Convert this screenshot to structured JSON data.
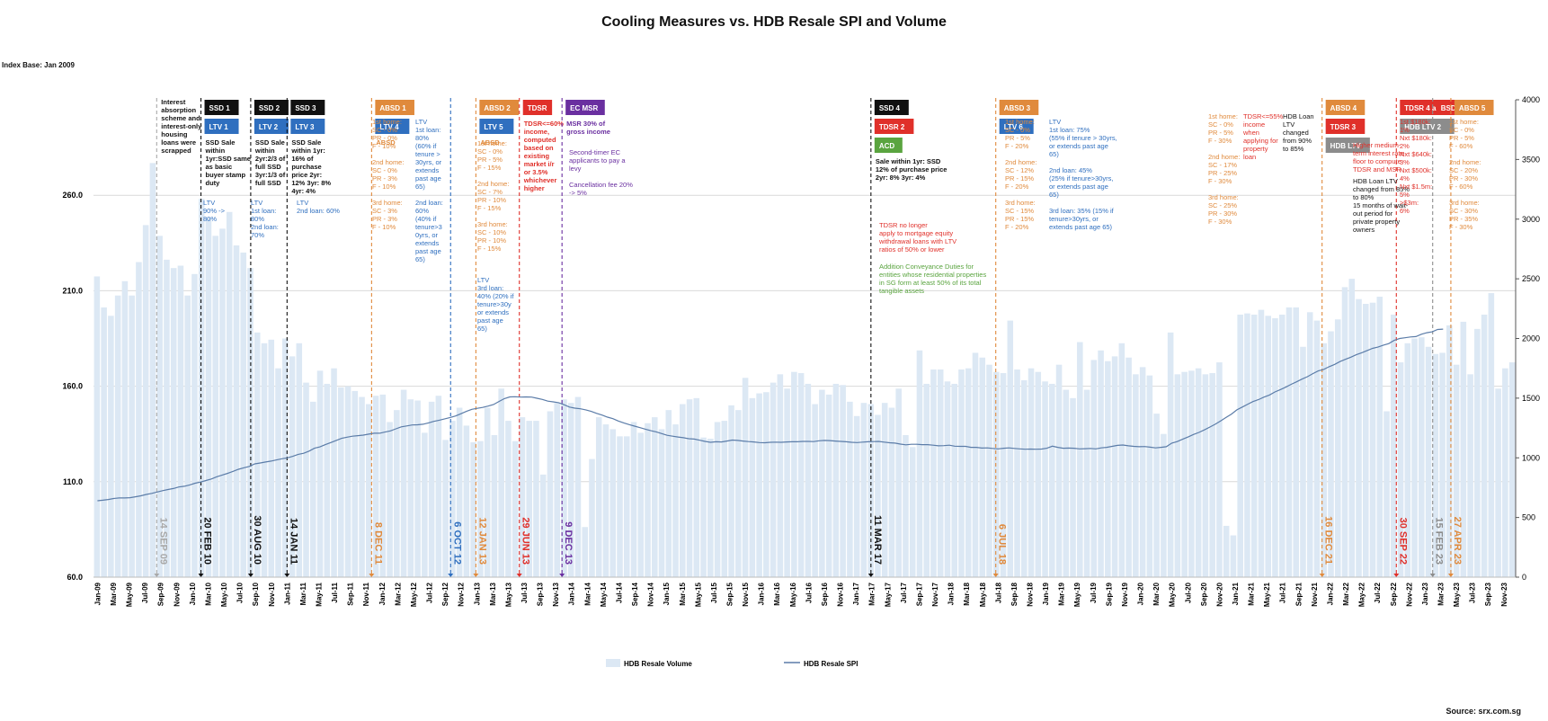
{
  "title": "Cooling Measures vs. HDB Resale SPI and Volume",
  "index_base": "Index Base: Jan 2009",
  "source": "Source: srx.com.sg",
  "colors": {
    "volume_bar": "#dce8f4",
    "spi_line": "#5b7ca8",
    "black": "#111111",
    "blue": "#2f6fbf",
    "orange": "#e08a3c",
    "red": "#e0302a",
    "purple": "#6a2fa0",
    "green": "#5aa43f",
    "gray": "#8c8c8c",
    "grey_event": "#a8a8a8"
  },
  "chart_data": {
    "type": "bar",
    "x_tick_labels": [
      "Jan-09",
      "Mar-09",
      "May-09",
      "Jul-09",
      "Sep-09",
      "Nov-09",
      "Jan-10",
      "Mar-10",
      "May-10",
      "Jul-10",
      "Sep-10",
      "Nov-10",
      "Jan-11",
      "Mar-11",
      "May-11",
      "Jul-11",
      "Sep-11",
      "Nov-11",
      "Jan-12",
      "Mar-12",
      "May-12",
      "Jul-12",
      "Sep-12",
      "Nov-12",
      "Jan-13",
      "Mar-13",
      "May-13",
      "Jul-13",
      "Sep-13",
      "Nov-13",
      "Jan-14",
      "Mar-14",
      "May-14",
      "Jul-14",
      "Sep-14",
      "Nov-14",
      "Jan-15",
      "Mar-15",
      "May-15",
      "Jul-15",
      "Sep-15",
      "Nov-15",
      "Jan-16",
      "Mar-16",
      "May-16",
      "Jul-16",
      "Sep-16",
      "Nov-16",
      "Jan-17",
      "Mar-17",
      "May-17",
      "Jul-17",
      "Sep-17",
      "Nov-17",
      "Jan-18",
      "Mar-18",
      "May-18",
      "Jul-18",
      "Sep-18",
      "Nov-18",
      "Jan-19",
      "Mar-19",
      "May-19",
      "Jul-19",
      "Sep-19",
      "Nov-19",
      "Jan-20",
      "Mar-20",
      "May-20",
      "Jul-20",
      "Sep-20",
      "Nov-20",
      "Jan-21",
      "Mar-21",
      "May-21",
      "Jul-21",
      "Sep-21",
      "Nov-21",
      "Jan-22",
      "Mar-22",
      "May-22",
      "Jul-22",
      "Sep-22",
      "Nov-22",
      "Jan-23",
      "Mar-23",
      "May-23",
      "Jul-23",
      "Sep-23",
      "Nov-23"
    ],
    "left_axis": {
      "ticks": [
        "60.0",
        "110.0",
        "160.0",
        "210.0",
        "260.0"
      ],
      "range": [
        60,
        310
      ]
    },
    "right_axis": {
      "ticks": [
        "0",
        "500",
        "1000",
        "1500",
        "2000",
        "2500",
        "3000",
        "3500",
        "4000"
      ],
      "range": [
        0,
        4000
      ]
    },
    "series": [
      {
        "name": "HDB Resale Volume",
        "type": "bar",
        "axis": "right",
        "start": "Jan-09",
        "values": [
          2520,
          2260,
          2190,
          2360,
          2480,
          2360,
          2640,
          2950,
          3470,
          2860,
          2660,
          2590,
          2610,
          2360,
          2540,
          3170,
          3010,
          2860,
          2920,
          3060,
          2780,
          2720,
          2590,
          2050,
          1960,
          1990,
          1750,
          2000,
          1850,
          1960,
          1630,
          1470,
          1730,
          1620,
          1750,
          1590,
          1600,
          1560,
          1510,
          1450,
          1520,
          1530,
          1300,
          1400,
          1570,
          1490,
          1480,
          1210,
          1470,
          1520,
          1150,
          1310,
          1420,
          1270,
          1130,
          1140,
          1420,
          1190,
          1580,
          1310,
          1140,
          1340,
          1310,
          1310,
          860,
          1390,
          1460,
          1490,
          1460,
          1510,
          420,
          990,
          1340,
          1280,
          1240,
          1180,
          1180,
          1300,
          1210,
          1290,
          1340,
          1240,
          1400,
          1280,
          1450,
          1490,
          1500,
          1170,
          1160,
          1300,
          1310,
          1440,
          1400,
          1670,
          1500,
          1540,
          1550,
          1630,
          1700,
          1580,
          1720,
          1710,
          1620,
          1450,
          1570,
          1530,
          1620,
          1610,
          1470,
          1350,
          1460,
          1450,
          1360,
          1460,
          1420,
          1580,
          1190,
          1090,
          1900,
          1620,
          1740,
          1740,
          1640,
          1620,
          1740,
          1750,
          1880,
          1840,
          1780,
          1720,
          1710,
          2150,
          1740,
          1650,
          1750,
          1720,
          1640,
          1620,
          1780,
          1570,
          1500,
          1970,
          1570,
          1820,
          1900,
          1810,
          1850,
          1960,
          1840,
          1700,
          1760,
          1690,
          1370,
          1200,
          2050,
          1700,
          1720,
          1730,
          1750,
          1700,
          1710,
          1800,
          430,
          350,
          2200,
          2210,
          2200,
          2240,
          2190,
          2170,
          2200,
          2260,
          2260,
          1930,
          2220,
          2150,
          1960,
          2060,
          2160,
          2430,
          2500,
          2330,
          2290,
          2300,
          2350,
          1390,
          2200,
          1800,
          1960,
          2000,
          2010,
          1930,
          1870,
          1880,
          2110,
          1780,
          2140,
          1700,
          2080,
          2200,
          2380,
          1580,
          1750,
          1800
        ]
      },
      {
        "name": "HDB Resale SPI",
        "type": "line",
        "axis": "left",
        "start": "Jan-09",
        "values": [
          100.0,
          100.3,
          100.7,
          101.2,
          101.5,
          101.5,
          101.6,
          102.1,
          102.6,
          103.3,
          103.9,
          104.6,
          105.3,
          105.9,
          106.4,
          107.2,
          107.6,
          108.3,
          109.2,
          109.8,
          110.6,
          111.4,
          112.6,
          113.5,
          114.4,
          115.4,
          116.5,
          117.3,
          118.0,
          119.3,
          119.8,
          120.3,
          120.8,
          121.4,
          122.0,
          122.5,
          123.3,
          124.3,
          124.9,
          126.0,
          127.5,
          128.2,
          129.4,
          130.5,
          131.6,
          132.7,
          133.3,
          133.8,
          134.1,
          134.4,
          134.9,
          135.4,
          135.4,
          136.0,
          136.6,
          137.7,
          138.7,
          139.2,
          139.7,
          139.8,
          140.1,
          140.8,
          141.6,
          142.2,
          142.9,
          143.6,
          144.4,
          145.6,
          146.8,
          147.9,
          148.4,
          148.9,
          149.6,
          150.4,
          152.0,
          153.5,
          154.4,
          154.5,
          154.3,
          154.4,
          154.3,
          153.7,
          153.1,
          152.2,
          151.8,
          151.4,
          150.3,
          149.1,
          148.5,
          148.2,
          147.6,
          146.8,
          145.8,
          144.9,
          143.8,
          143.0,
          141.8,
          140.8,
          139.9,
          139.1,
          138.3,
          137.5,
          136.7,
          136.1,
          135.2,
          134.3,
          133.8,
          133.4,
          133.0,
          132.5,
          132.3,
          131.7,
          131.1,
          130.6,
          130.9,
          130.8,
          131.3,
          131.8,
          131.6,
          131.3,
          131.0,
          130.8,
          130.5,
          130.4,
          130.6,
          130.7,
          130.6,
          130.8,
          130.9,
          130.9,
          131.1,
          131.1,
          131.0,
          131.4,
          131.6,
          131.5,
          131.3,
          131.1,
          130.9,
          130.6,
          130.5,
          130.7,
          130.9,
          131.0,
          131.1,
          130.7,
          130.4,
          130.2,
          129.7,
          129.3,
          129.6,
          129.6,
          129.4,
          129.4,
          129.1,
          128.8,
          128.9,
          129.1,
          128.6,
          128.5,
          128.5,
          128.0,
          128.0,
          127.6,
          127.7,
          127.4,
          127.2,
          127.5,
          127.7,
          127.4,
          127.2,
          127.0,
          127.1,
          127.0,
          127.1,
          127.5,
          128.6,
          128.0,
          127.5,
          127.6,
          127.5,
          127.2,
          127.3,
          127.4,
          127.2,
          127.7,
          128.0,
          128.5,
          129.0,
          129.2,
          128.8,
          128.5,
          128.3,
          128.4,
          128.1,
          127.7,
          128.0,
          128.3,
          130.2,
          131.0,
          132.2,
          133.4,
          134.7,
          135.8,
          137.1,
          138.6,
          140.1,
          141.8,
          143.6,
          145.4,
          147.6,
          149.1,
          150.6,
          152.0,
          153.0,
          154.3,
          155.4,
          157.0,
          158.2,
          159.5,
          161.0,
          162.3,
          163.7,
          165.0,
          166.6,
          168.0,
          168.8,
          170.2,
          171.4,
          172.9,
          174.1,
          175.2,
          176.5,
          177.5,
          178.7,
          179.8,
          180.5,
          181.5,
          182.3,
          184.0,
          185.0,
          185.4,
          185.8,
          186.0,
          187.2,
          188.0,
          188.5,
          189.7,
          189.9
        ]
      }
    ]
  },
  "events": [
    {
      "date": "14 SEP 09",
      "month": 8,
      "color": "grey_event",
      "boxes": [],
      "text": "Interest absorption scheme and interest-only housing loans were scrapped"
    },
    {
      "date": "20 FEB 10",
      "month": 13.6,
      "color": "black",
      "boxes": [
        {
          "t": "SSD 1",
          "c": "black"
        },
        {
          "t": "LTV 1",
          "c": "blue"
        }
      ],
      "text": "SSD Sale within 1yr:SSD same as basic buyer stamp duty"
    },
    {
      "date": "30 AUG 10",
      "month": 19.9,
      "color": "black",
      "boxes": [
        {
          "t": "SSD 2",
          "c": "black"
        },
        {
          "t": "LTV 2",
          "c": "blue"
        }
      ],
      "text": "SSD Sale within 2yr:2/3 of full SSD 3yr:1/3 of full SSD"
    },
    {
      "date": "14 JAN 11",
      "month": 24.5,
      "color": "black",
      "boxes": [
        {
          "t": "SSD 3",
          "c": "black"
        },
        {
          "t": "LTV 3",
          "c": "blue"
        }
      ],
      "text": "SSD Sale within 1yr: 16% of purchase price 2yr: 12% 3yr: 8% 4yr: 4%"
    },
    {
      "date": "8 DEC 11",
      "month": 35.2,
      "color": "orange",
      "boxes": [
        {
          "t": "ABSD 1",
          "c": "orange"
        },
        {
          "t": "LTV 4",
          "c": "blue"
        }
      ],
      "text": "ABSD"
    },
    {
      "date": "6 OCT 12",
      "month": 45.2,
      "color": "blue",
      "boxes": [],
      "text": ""
    },
    {
      "date": "12 JAN 13",
      "month": 48.4,
      "color": "orange",
      "boxes": [
        {
          "t": "ABSD 2",
          "c": "orange"
        },
        {
          "t": "LTV 5",
          "c": "blue"
        }
      ],
      "text": "ABSD"
    },
    {
      "date": "29 JUN 13",
      "month": 53.9,
      "color": "red",
      "boxes": [
        {
          "t": "TDSR",
          "c": "red"
        }
      ],
      "text": "TDSR<=60% income, computed based on existing market i/r or 3.5% whichever higher"
    },
    {
      "date": "9 DEC 13",
      "month": 59.3,
      "color": "purple",
      "boxes": [
        {
          "t": "EC MSR",
          "c": "purple"
        }
      ],
      "text": "MSR 30% of gross income"
    },
    {
      "date": "11 MAR 17",
      "month": 98.4,
      "color": "black",
      "boxes": [
        {
          "t": "SSD 4",
          "c": "black"
        },
        {
          "t": "TDSR 2",
          "c": "red"
        },
        {
          "t": "ACD",
          "c": "green"
        }
      ],
      "text": "Sale within 1yr: SSD 12% of purchase price 2yr: 8% 3yr: 4%"
    },
    {
      "date": "6 JUL 18",
      "month": 114.2,
      "color": "orange",
      "boxes": [
        {
          "t": "ABSD 3",
          "c": "orange"
        },
        {
          "t": "LTV 6",
          "c": "blue"
        }
      ],
      "text": ""
    },
    {
      "date": "16 DEC 21",
      "month": 155.5,
      "color": "orange",
      "boxes": [
        {
          "t": "ABSD 4",
          "c": "orange"
        },
        {
          "t": "TDSR 3",
          "c": "red"
        },
        {
          "t": "HDB LTV",
          "c": "gray"
        }
      ],
      "text": ""
    },
    {
      "date": "30 SEP 22",
      "month": 164.9,
      "color": "red",
      "boxes": [
        {
          "t": "TDSR 4 and MSR",
          "c": "red"
        },
        {
          "t": "HDB LTV 2",
          "c": "gray"
        }
      ],
      "text": ""
    },
    {
      "date": "15 FEB 23",
      "month": 169.5,
      "color": "gray",
      "boxes": [
        {
          "t": "BSD 1",
          "c": "red"
        }
      ],
      "text": ""
    },
    {
      "date": "27 APR 23",
      "month": 171.8,
      "color": "orange",
      "boxes": [
        {
          "t": "ABSD 5",
          "c": "orange"
        }
      ],
      "text": ""
    }
  ],
  "notes": [
    {
      "x": 226,
      "y": 228,
      "c": "blue",
      "lines": [
        "LTV",
        "90% ->",
        "80%"
      ]
    },
    {
      "x": 279,
      "y": 228,
      "c": "blue",
      "lines": [
        "LTV",
        "1st loan:",
        "80%",
        "2nd loan:",
        "70%"
      ]
    },
    {
      "x": 330,
      "y": 228,
      "c": "blue",
      "lines": [
        "LTV",
        "2nd loan: 60%"
      ]
    },
    {
      "x": 414,
      "y": 138,
      "c": "orange",
      "lines": [
        "1st home:",
        "SC - 0%",
        "PR - 0%",
        "F - 10%",
        "",
        "2nd home:",
        "SC - 0%",
        "PR - 3%",
        "F - 10%",
        "",
        "3rd home:",
        "SC - 3%",
        "PR - 3%",
        "F - 10%"
      ]
    },
    {
      "x": 462,
      "y": 138,
      "c": "blue",
      "lines": [
        "LTV",
        "1st loan:",
        "80%",
        "(60% if",
        "tenure >",
        "30yrs, or",
        "extends",
        "past age",
        "65)",
        "",
        "2nd loan:",
        "60%",
        "(40% if",
        "tenure>3",
        "0yrs, or",
        "extends",
        "past age",
        "65)"
      ]
    },
    {
      "x": 531,
      "y": 162,
      "c": "orange",
      "lines": [
        "1st home:",
        "SC - 0%",
        "PR - 5%",
        "F - 15%",
        "",
        "2nd home:",
        "SC - 7%",
        "PR - 10%",
        "F - 15%",
        "",
        "3rd home:",
        "SC - 10%",
        "PR - 10%",
        "F - 15%"
      ]
    },
    {
      "x": 531,
      "y": 314,
      "c": "blue",
      "lines": [
        "LTV",
        "3rd loan:",
        "40% (20% if",
        "tenure>30y",
        "or extends",
        "past age",
        "65)"
      ]
    },
    {
      "x": 633,
      "y": 172,
      "c": "purple",
      "lines": [
        "Second-timer EC",
        "applicants to pay a",
        "levy",
        "",
        "Cancellation fee 20%",
        "-> 5%"
      ]
    },
    {
      "x": 978,
      "y": 253,
      "c": "red",
      "lines": [
        "TDSR no longer",
        "apply to mortgage equity",
        "withdrawal loans with LTV",
        "ratios of 50% or lower"
      ]
    },
    {
      "x": 978,
      "y": 299,
      "c": "green",
      "lines": [
        "Addition Conveyance Duties for",
        "entities whose residential properties",
        "in SG form at least 50% of its total",
        "tangible assets"
      ]
    },
    {
      "x": 1118,
      "y": 138,
      "c": "orange",
      "lines": [
        "1st home:",
        "SC - 0%",
        "PR - 5%",
        "F - 20%",
        "",
        "2nd home:",
        "SC - 12%",
        "PR - 15%",
        "F - 20%",
        "",
        "3rd home:",
        "SC - 15%",
        "PR - 15%",
        "F - 20%"
      ]
    },
    {
      "x": 1167,
      "y": 138,
      "c": "blue",
      "lines": [
        "LTV",
        "1st loan: 75%",
        "(55% if tenure > 30yrs,",
        "or extends past age",
        "65)",
        "",
        "2nd loan: 45%",
        "(25% if tenure>30yrs,",
        "or extends past age",
        "65)",
        "",
        "3rd loan: 35% (15% if",
        "tenure>30yrs, or",
        "extends past age 65)"
      ]
    },
    {
      "x": 1344,
      "y": 132,
      "c": "orange",
      "lines": [
        "1st home:",
        "SC - 0%",
        "PR - 5%",
        "F - 30%",
        "",
        "2nd home:",
        "SC - 17%",
        "PR - 25%",
        "F - 30%",
        "",
        "3rd home:",
        "SC - 25%",
        "PR - 30%",
        "F - 30%"
      ]
    },
    {
      "x": 1383,
      "y": 132,
      "c": "red",
      "lines": [
        "TDSR<=55%",
        "income",
        "when",
        "applying for",
        "property",
        "loan"
      ]
    },
    {
      "x": 1427,
      "y": 132,
      "c": "black",
      "lines": [
        "HDB Loan",
        "LTV",
        "changed",
        "from 90%",
        "to 85%"
      ]
    },
    {
      "x": 1505,
      "y": 164,
      "c": "red",
      "lines": [
        "Higher medium-",
        "term interest rate",
        "floor to compute",
        "TDSR and MSR"
      ]
    },
    {
      "x": 1505,
      "y": 204,
      "c": "black",
      "lines": [
        "HDB Loan LTV",
        "changed from 85%",
        "to 80%",
        "15 months of wait-",
        "out period for",
        "private property",
        "owners"
      ]
    },
    {
      "x": 1557,
      "y": 138,
      "c": "red",
      "lines": [
        "1st $180k:",
        "1%",
        "Nxt $180k:",
        "2%",
        "Nxt $640k:",
        "3%",
        "Nxt $500k:",
        "4%",
        "Nxt $1.5m:",
        "5%",
        ">$3m:",
        "6%"
      ]
    },
    {
      "x": 1612,
      "y": 138,
      "c": "orange",
      "lines": [
        "1st home:",
        "SC - 0%",
        "PR - 5%",
        "F - 60%",
        "",
        "2nd home:",
        "SC - 20%",
        "PR - 30%",
        "F - 60%",
        "",
        "3rd home:",
        "SC - 30%",
        "PR - 35%",
        "F - 30%"
      ]
    }
  ],
  "legend": {
    "volume": "HDB Resale Volume",
    "spi": "HDB Resale SPI"
  }
}
